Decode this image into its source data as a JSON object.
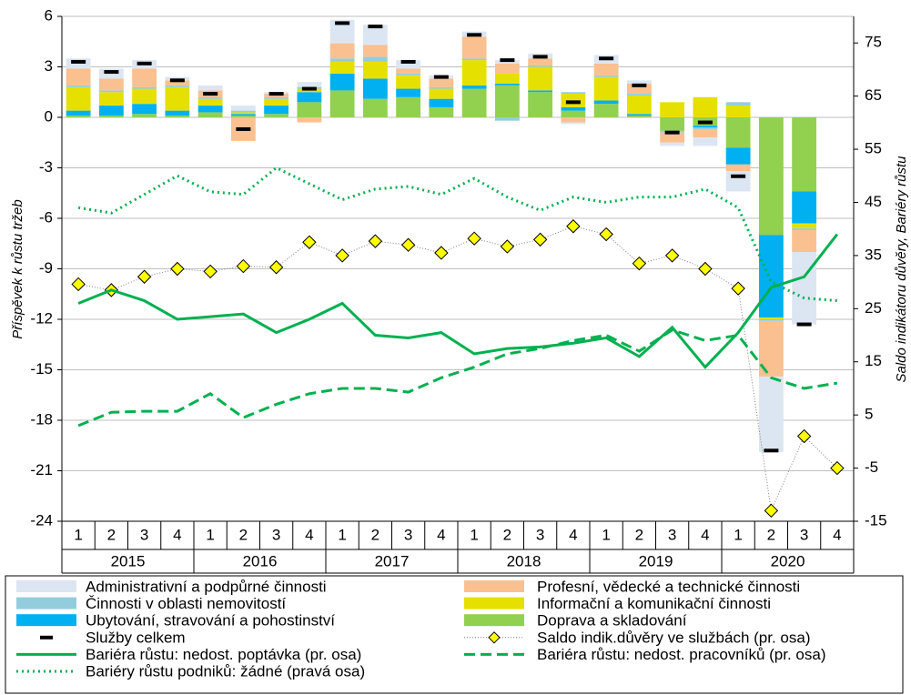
{
  "chart_data": {
    "type": "bar",
    "y_axis_label": "Příspěvek k růstu tržeb",
    "y2_axis_label": "Saldo indikátoru důvěry, Bariéry růstu",
    "categories": [
      "1",
      "2",
      "3",
      "4",
      "1",
      "2",
      "3",
      "4",
      "1",
      "2",
      "3",
      "4",
      "1",
      "2",
      "3",
      "4",
      "1",
      "2",
      "3",
      "4",
      "1",
      "2",
      "3",
      "4"
    ],
    "years": [
      "2015",
      "2016",
      "2017",
      "2018",
      "2019",
      "2020"
    ],
    "ylim": [
      -24,
      6
    ],
    "yticks": [
      -24,
      -21,
      -18,
      -15,
      -12,
      -9,
      -6,
      -3,
      0,
      3,
      6
    ],
    "y2lim": [
      -15,
      80
    ],
    "y2ticks": [
      -15,
      -5,
      5,
      15,
      25,
      35,
      45,
      55,
      65,
      75
    ],
    "grid": true,
    "series": [
      {
        "name": "Administrativní a podpůrné činnosti",
        "kind": "bar",
        "color": "#dce6f2",
        "values": [
          0.6,
          0.6,
          0.5,
          0.2,
          0.3,
          0.3,
          0.1,
          0.3,
          1.4,
          1.2,
          0.5,
          0.2,
          0.3,
          0.2,
          0.3,
          -0.1,
          0.5,
          0.2,
          -0.2,
          -0.5,
          -1.2,
          -4.5,
          -4.3,
          null
        ]
      },
      {
        "name": "Profesní, vědecké a technické činnosti",
        "kind": "bar",
        "color": "#fac090",
        "values": [
          1.0,
          0.7,
          1.1,
          0.3,
          0.4,
          -1.4,
          0.2,
          -0.3,
          0.9,
          0.7,
          0.3,
          0.5,
          1.3,
          0.6,
          0.4,
          -0.3,
          0.7,
          0.6,
          -0.6,
          -0.5,
          -0.4,
          -3.3,
          -1.3,
          null
        ]
      },
      {
        "name": "Činnosti v oblasti nemovitostí",
        "kind": "bar",
        "color": "#93cddd",
        "values": [
          0.1,
          0.1,
          0.1,
          0.1,
          0.1,
          0.1,
          0.1,
          0.1,
          0.2,
          0.3,
          0.1,
          0.1,
          0.1,
          -0.2,
          0.1,
          0.1,
          0.1,
          0.1,
          -0.1,
          -0.1,
          0.2,
          -0.1,
          -0.1,
          null
        ]
      },
      {
        "name": "Informační a komunikační činnosti",
        "kind": "bar",
        "color": "#e6e000",
        "values": [
          1.4,
          0.8,
          0.9,
          1.4,
          0.4,
          0.1,
          0.4,
          0.2,
          0.7,
          1.0,
          0.8,
          0.6,
          1.5,
          0.6,
          1.4,
          0.8,
          1.4,
          1.1,
          0.9,
          1.2,
          0.7,
          -0.1,
          -0.3,
          null
        ]
      },
      {
        "name": "Ubytování, stravování a pohostinství",
        "kind": "bar",
        "color": "#00b0f0",
        "values": [
          0.3,
          0.6,
          0.6,
          0.3,
          0.4,
          0.1,
          0.5,
          0.6,
          1.0,
          1.2,
          0.5,
          0.5,
          0.2,
          0.1,
          0.1,
          0.2,
          0.2,
          0.1,
          0.0,
          -0.1,
          -1.0,
          -4.9,
          -1.9,
          null
        ]
      },
      {
        "name": "Doprava a skladování",
        "kind": "bar",
        "color": "#92d050",
        "values": [
          0.1,
          0.1,
          0.2,
          0.1,
          0.3,
          0.1,
          0.2,
          0.9,
          1.6,
          1.1,
          1.2,
          0.6,
          1.7,
          1.9,
          1.5,
          0.4,
          0.8,
          0.1,
          -0.8,
          -0.5,
          -1.8,
          -7.0,
          -4.4,
          null
        ]
      },
      {
        "name": "Služby celkem",
        "kind": "dash",
        "color": "#000000",
        "values": [
          3.3,
          2.7,
          3.2,
          2.2,
          1.4,
          -0.7,
          1.4,
          1.7,
          5.6,
          5.4,
          3.3,
          2.4,
          4.9,
          3.4,
          3.6,
          0.9,
          3.5,
          1.9,
          -0.9,
          -0.3,
          -3.5,
          -19.8,
          -12.3,
          null
        ]
      },
      {
        "name": "Saldo indik.důvěry ve službách (pr. osa)",
        "kind": "diamond",
        "axis": "y2",
        "color": "#ffff00",
        "values": [
          29.6,
          28.5,
          31,
          32.5,
          32,
          33,
          32.8,
          37.5,
          35,
          37.7,
          37,
          35.5,
          38.2,
          36.7,
          38,
          40.5,
          39,
          33.5,
          35,
          32.5,
          28.8,
          -13,
          1,
          -5
        ]
      },
      {
        "name": "Bariéra růstu: nedost. poptávka (pr. osa)",
        "kind": "line",
        "linestyle": "solid",
        "axis": "y2",
        "color": "#00b050",
        "values": [
          26,
          28.5,
          26.5,
          23,
          23.5,
          24,
          20.5,
          23,
          26,
          20,
          19.5,
          20.5,
          16.5,
          17.5,
          17.8,
          18.5,
          19.5,
          16,
          21.5,
          14,
          20.5,
          29,
          31,
          39
        ]
      },
      {
        "name": "Bariéra růstu: nedost. pracovníků (pr. osa)",
        "kind": "line",
        "linestyle": "dashed",
        "axis": "y2",
        "color": "#00b050",
        "values": [
          3,
          5.5,
          5.7,
          5.7,
          9,
          4.5,
          7,
          9,
          10,
          10,
          9.3,
          12,
          14,
          16.5,
          17.5,
          19,
          20,
          17,
          21,
          19,
          20,
          12,
          10,
          11
        ]
      },
      {
        "name": "Bariéry růstu podniků: žádné (pravá osa)",
        "kind": "line",
        "linestyle": "dotted",
        "axis": "y2",
        "color": "#00b050",
        "values": [
          44,
          43,
          46.5,
          50,
          47,
          46.5,
          51.5,
          48.5,
          45.5,
          47.5,
          48,
          46.5,
          49.5,
          46,
          43.5,
          46,
          45,
          46,
          46,
          47.5,
          44,
          30,
          27,
          26.5
        ]
      }
    ]
  }
}
